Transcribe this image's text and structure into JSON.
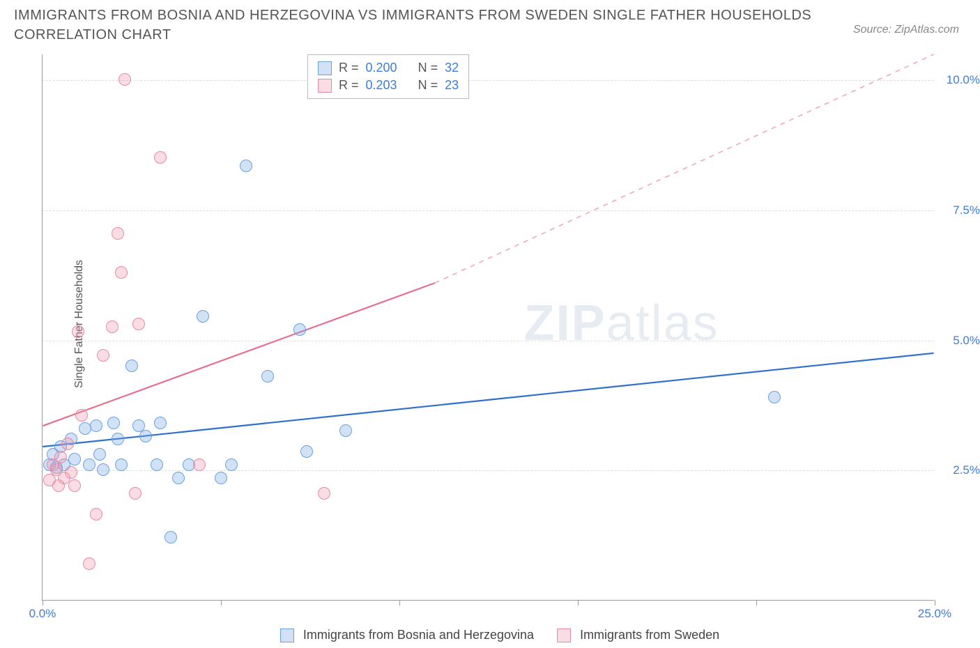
{
  "title": "IMMIGRANTS FROM BOSNIA AND HERZEGOVINA VS IMMIGRANTS FROM SWEDEN SINGLE FATHER HOUSEHOLDS CORRELATION CHART",
  "source_label": "Source: ZipAtlas.com",
  "ylabel": "Single Father Households",
  "watermark_bold": "ZIP",
  "watermark_light": "atlas",
  "chart": {
    "type": "scatter",
    "xlim": [
      0,
      25
    ],
    "ylim": [
      0,
      10.5
    ],
    "background_color": "#ffffff",
    "grid_color": "#dddddd",
    "axis_color": "#999999",
    "y_ticks": [
      {
        "value": 2.5,
        "label": "2.5%"
      },
      {
        "value": 5.0,
        "label": "5.0%"
      },
      {
        "value": 7.5,
        "label": "7.5%"
      },
      {
        "value": 10.0,
        "label": "10.0%"
      }
    ],
    "x_ticks": [
      {
        "value": 0.0,
        "label": "0.0%"
      },
      {
        "value": 5.0,
        "label": ""
      },
      {
        "value": 10.0,
        "label": ""
      },
      {
        "value": 15.0,
        "label": ""
      },
      {
        "value": 20.0,
        "label": ""
      },
      {
        "value": 25.0,
        "label": "25.0%"
      }
    ],
    "series": [
      {
        "key": "bosnia",
        "label": "Immigrants from Bosnia and Herzegovina",
        "fill": "rgba(122,172,232,0.35)",
        "stroke": "#6aa0de",
        "R": "0.200",
        "N": "32",
        "trend": {
          "x1": 0.0,
          "y1": 2.95,
          "x2": 25.0,
          "y2": 4.75,
          "color": "#2f6fd0",
          "dash": "none",
          "width": 2.2
        },
        "points": [
          [
            0.2,
            2.6
          ],
          [
            0.3,
            2.8
          ],
          [
            0.4,
            2.55
          ],
          [
            0.5,
            2.95
          ],
          [
            0.6,
            2.6
          ],
          [
            0.8,
            3.1
          ],
          [
            0.9,
            2.7
          ],
          [
            1.2,
            3.3
          ],
          [
            1.3,
            2.6
          ],
          [
            1.5,
            3.35
          ],
          [
            1.6,
            2.8
          ],
          [
            1.7,
            2.5
          ],
          [
            2.0,
            3.4
          ],
          [
            2.1,
            3.1
          ],
          [
            2.2,
            2.6
          ],
          [
            2.5,
            4.5
          ],
          [
            2.7,
            3.35
          ],
          [
            2.9,
            3.15
          ],
          [
            3.2,
            2.6
          ],
          [
            3.3,
            3.4
          ],
          [
            3.6,
            1.2
          ],
          [
            3.8,
            2.35
          ],
          [
            4.1,
            2.6
          ],
          [
            4.5,
            5.45
          ],
          [
            5.0,
            2.35
          ],
          [
            5.3,
            2.6
          ],
          [
            5.7,
            8.35
          ],
          [
            6.3,
            4.3
          ],
          [
            7.2,
            5.2
          ],
          [
            7.4,
            2.85
          ],
          [
            8.5,
            3.25
          ],
          [
            20.5,
            3.9
          ]
        ]
      },
      {
        "key": "sweden",
        "label": "Immigrants from Sweden",
        "fill": "rgba(240,150,170,0.32)",
        "stroke": "#e88aa2",
        "R": "0.203",
        "N": "23",
        "trend_solid": {
          "x1": 0.0,
          "y1": 3.35,
          "x2": 11.0,
          "y2": 6.1,
          "color": "#e46f8f",
          "width": 2.2
        },
        "trend_dash": {
          "x1": 11.0,
          "y1": 6.1,
          "x2": 25.0,
          "y2": 10.5,
          "color": "#f0a8bb",
          "width": 1.6
        },
        "points": [
          [
            0.2,
            2.3
          ],
          [
            0.3,
            2.6
          ],
          [
            0.4,
            2.5
          ],
          [
            0.45,
            2.2
          ],
          [
            0.5,
            2.75
          ],
          [
            0.6,
            2.35
          ],
          [
            0.7,
            3.0
          ],
          [
            0.8,
            2.45
          ],
          [
            0.9,
            2.2
          ],
          [
            1.0,
            5.15
          ],
          [
            1.1,
            3.55
          ],
          [
            1.3,
            0.7
          ],
          [
            1.5,
            1.65
          ],
          [
            1.7,
            4.7
          ],
          [
            1.95,
            5.25
          ],
          [
            2.1,
            7.05
          ],
          [
            2.2,
            6.3
          ],
          [
            2.3,
            10.0
          ],
          [
            2.6,
            2.05
          ],
          [
            2.7,
            5.3
          ],
          [
            3.3,
            8.5
          ],
          [
            4.4,
            2.6
          ],
          [
            7.9,
            2.05
          ]
        ]
      }
    ]
  },
  "legend_stats": {
    "r_prefix": "R = ",
    "n_prefix": "N = "
  }
}
